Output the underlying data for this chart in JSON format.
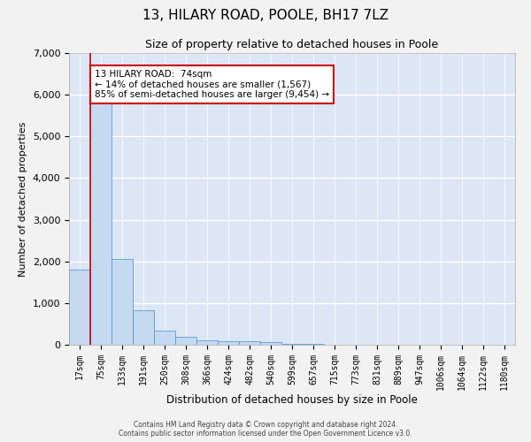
{
  "title": "13, HILARY ROAD, POOLE, BH17 7LZ",
  "subtitle": "Size of property relative to detached houses in Poole",
  "xlabel": "Distribution of detached houses by size in Poole",
  "ylabel": "Number of detached properties",
  "footer_line1": "Contains HM Land Registry data © Crown copyright and database right 2024.",
  "footer_line2": "Contains public sector information licensed under the Open Government Licence v3.0.",
  "bin_labels": [
    "17sqm",
    "75sqm",
    "133sqm",
    "191sqm",
    "250sqm",
    "308sqm",
    "366sqm",
    "424sqm",
    "482sqm",
    "540sqm",
    "599sqm",
    "657sqm",
    "715sqm",
    "773sqm",
    "831sqm",
    "889sqm",
    "947sqm",
    "1006sqm",
    "1064sqm",
    "1122sqm",
    "1180sqm"
  ],
  "bar_values": [
    1800,
    5800,
    2050,
    820,
    340,
    185,
    110,
    95,
    90,
    70,
    30,
    20,
    10,
    5,
    5,
    3,
    2,
    2,
    1,
    1,
    0
  ],
  "bar_color": "#c5d9f0",
  "bar_edge_color": "#5b9bd5",
  "property_line_bin_index": 1,
  "annotation_title": "13 HILARY ROAD:  74sqm",
  "annotation_line2": "← 14% of detached houses are smaller (1,567)",
  "annotation_line3": "85% of semi-detached houses are larger (9,454) →",
  "annotation_box_color": "#ffffff",
  "annotation_border_color": "#cc0000",
  "property_line_color": "#cc0000",
  "ylim": [
    0,
    7000
  ],
  "yticks": [
    0,
    1000,
    2000,
    3000,
    4000,
    5000,
    6000,
    7000
  ],
  "plot_bg_color": "#dce6f5",
  "fig_bg_color": "#f2f2f2",
  "grid_color": "#ffffff",
  "title_fontsize": 11,
  "subtitle_fontsize": 9,
  "axis_label_fontsize": 8,
  "tick_fontsize": 7,
  "annotation_fontsize": 7.5
}
